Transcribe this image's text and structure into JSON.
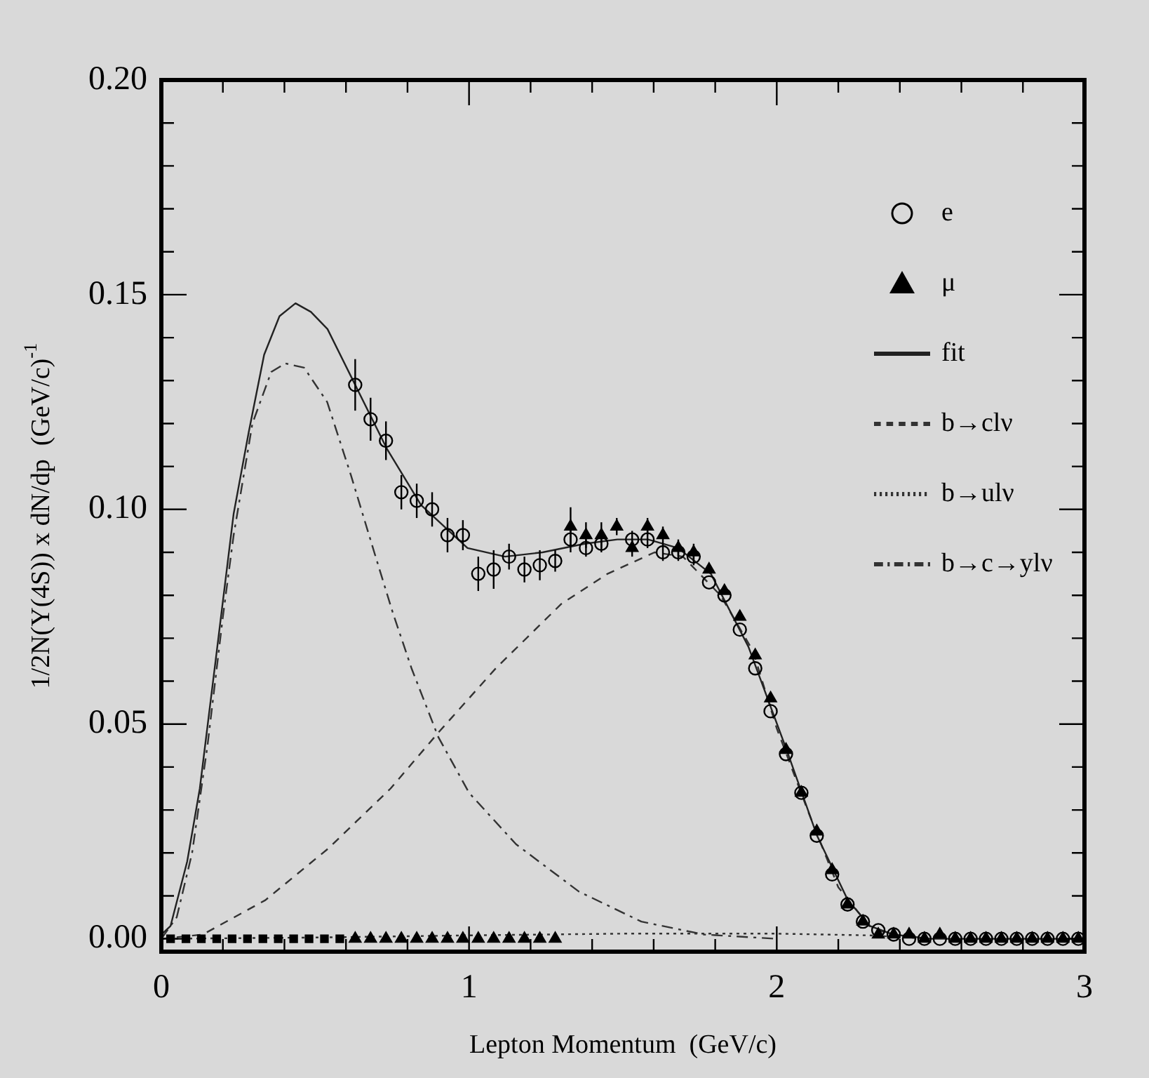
{
  "chart_data": {
    "type": "scatter",
    "xlabel": "Lepton Momentum  (GeV/c)",
    "ylabel": "1/2N(Y(4S)) x dN/dp  (GeV/c)$^{-1}$",
    "xlim": [
      0,
      3
    ],
    "ylim": [
      -0.003,
      0.2
    ],
    "xticks": [
      0,
      {
        "value": 0.2,
        "label": null
      },
      {
        "value": 0.4,
        "label": null
      },
      {
        "value": 0.6,
        "label": null
      },
      {
        "value": 0.8,
        "label": null
      },
      1,
      {
        "value": 1.2,
        "label": null
      },
      {
        "value": 1.4,
        "label": null
      },
      {
        "value": 1.6,
        "label": null
      },
      {
        "value": 1.8,
        "label": null
      },
      2,
      {
        "value": 2.2,
        "label": null
      },
      {
        "value": 2.4,
        "label": null
      },
      {
        "value": 2.6,
        "label": null
      },
      {
        "value": 2.8,
        "label": null
      },
      3
    ],
    "yticks": [
      {
        "value": 0,
        "label": "0.00"
      },
      {
        "value": 0.01,
        "label": null
      },
      {
        "value": 0.02,
        "label": null
      },
      {
        "value": 0.03,
        "label": null
      },
      {
        "value": 0.04,
        "label": null
      },
      {
        "value": 0.05,
        "label": "0.05"
      },
      {
        "value": 0.06,
        "label": null
      },
      {
        "value": 0.07,
        "label": null
      },
      {
        "value": 0.08,
        "label": null
      },
      {
        "value": 0.09,
        "label": null
      },
      {
        "value": 0.1,
        "label": "0.10"
      },
      {
        "value": 0.11,
        "label": null
      },
      {
        "value": 0.12,
        "label": null
      },
      {
        "value": 0.13,
        "label": null
      },
      {
        "value": 0.14,
        "label": null
      },
      {
        "value": 0.15,
        "label": "0.15"
      },
      {
        "value": 0.16,
        "label": null
      },
      {
        "value": 0.17,
        "label": null
      },
      {
        "value": 0.18,
        "label": null
      },
      {
        "value": 0.19,
        "label": null
      },
      {
        "value": 0.2,
        "label": "0.20"
      }
    ],
    "legend": "top right",
    "grid": false,
    "series": [
      {
        "name": "e",
        "marker": "circle",
        "color": "#000000",
        "x": [
          0.63,
          0.68,
          0.73,
          0.78,
          0.83,
          0.88,
          0.93,
          0.98,
          1.03,
          1.08,
          1.13,
          1.18,
          1.23,
          1.28,
          1.33,
          1.38,
          1.43,
          1.53,
          1.58,
          1.63,
          1.68,
          1.73,
          1.78,
          1.83,
          1.88,
          1.93,
          1.98,
          2.03,
          2.08,
          2.13,
          2.18,
          2.23,
          2.28,
          2.33,
          2.38,
          2.43,
          2.48,
          2.53,
          2.58,
          2.63,
          2.68,
          2.73,
          2.78,
          2.83,
          2.88,
          2.93,
          2.98
        ],
        "values": [
          0.129,
          0.121,
          0.116,
          0.104,
          0.102,
          0.1,
          0.094,
          0.094,
          0.085,
          0.086,
          0.089,
          0.086,
          0.087,
          0.088,
          0.093,
          0.091,
          0.092,
          0.093,
          0.093,
          0.09,
          0.09,
          0.089,
          0.083,
          0.08,
          0.072,
          0.063,
          0.053,
          0.043,
          0.034,
          0.024,
          0.015,
          0.008,
          0.004,
          0.002,
          0.001,
          0,
          0,
          0,
          0,
          0,
          0,
          0,
          0,
          0,
          0,
          0,
          0
        ],
        "errors": [
          0.006,
          0.005,
          0.0045,
          0.004,
          0.004,
          0.004,
          0.004,
          0.0035,
          0.004,
          0.0045,
          0.003,
          0.003,
          0.0035,
          0.0025,
          0.003,
          0.002,
          0.002,
          0.002,
          0.002,
          0.002,
          0.002,
          0.002,
          null,
          null,
          null,
          null,
          null,
          null,
          null,
          null,
          null,
          null,
          null,
          null,
          null,
          null,
          null,
          null,
          null,
          null,
          null,
          null,
          null,
          null,
          null,
          null,
          null
        ]
      },
      {
        "name": "μ",
        "marker": "triangle",
        "color": "#000000",
        "x": [
          0.63,
          0.68,
          0.73,
          0.78,
          0.83,
          0.88,
          0.93,
          0.98,
          1.03,
          1.08,
          1.13,
          1.18,
          1.23,
          1.28,
          1.33,
          1.38,
          1.43,
          1.48,
          1.53,
          1.58,
          1.63,
          1.68,
          1.73,
          1.78,
          1.83,
          1.88,
          1.93,
          1.98,
          2.03,
          2.08,
          2.13,
          2.18,
          2.23,
          2.28,
          2.33,
          2.38,
          2.43,
          2.48,
          2.53,
          2.58,
          2.63,
          2.68,
          2.73,
          2.78,
          2.83,
          2.88,
          2.93,
          2.98
        ],
        "values": [
          0,
          0,
          0,
          0,
          0,
          0,
          0,
          0,
          0,
          0,
          0,
          0,
          0,
          0,
          0.096,
          0.094,
          0.094,
          0.096,
          0.091,
          0.096,
          0.094,
          0.091,
          0.09,
          0.086,
          0.081,
          0.075,
          0.066,
          0.056,
          0.044,
          0.034,
          0.025,
          0.016,
          0.008,
          0.004,
          0.001,
          0.001,
          0.001,
          0,
          0.001,
          0,
          0,
          0,
          0,
          0,
          0,
          0,
          0,
          0
        ],
        "errors": [
          null,
          null,
          null,
          null,
          null,
          null,
          null,
          null,
          null,
          null,
          null,
          null,
          null,
          null,
          0.0045,
          0.003,
          0.003,
          0.002,
          0.002,
          0.002,
          0.002,
          0.002,
          0.002,
          null,
          null,
          null,
          null,
          null,
          null,
          null,
          null,
          null,
          null,
          null,
          null,
          null,
          null,
          null,
          null,
          null,
          null,
          null,
          null,
          null,
          null,
          null,
          null,
          null
        ]
      },
      {
        "marker": "square",
        "color": "#000000",
        "x": [
          0.03,
          0.08,
          0.13,
          0.18,
          0.23,
          0.28,
          0.33,
          0.38,
          0.43,
          0.48,
          0.53,
          0.58
        ],
        "values": [
          0,
          0,
          0,
          0,
          0,
          0,
          0,
          0,
          0,
          0,
          0,
          0
        ]
      },
      {
        "name": "fit",
        "type": "line",
        "line_style": "solid",
        "color": "#222222",
        "x": [
          0,
          0.03,
          0.084,
          0.125,
          0.175,
          0.235,
          0.284,
          0.334,
          0.384,
          0.436,
          0.486,
          0.54,
          0.63,
          0.734,
          0.844,
          0.995,
          1.117,
          1.239,
          1.376,
          1.482,
          1.582,
          1.679,
          1.786,
          1.908,
          2.032,
          2.131,
          2.231,
          2.303,
          2.378,
          2.5,
          3
        ],
        "values": [
          0.001,
          0.003,
          0.018,
          0.035,
          0.064,
          0.099,
          0.118,
          0.136,
          0.145,
          0.148,
          0.146,
          0.142,
          0.129,
          0.114,
          0.101,
          0.091,
          0.089,
          0.09,
          0.092,
          0.093,
          0.093,
          0.091,
          0.085,
          0.068,
          0.044,
          0.024,
          0.009,
          0.003,
          0.001,
          0,
          0
        ]
      },
      {
        "name": "b→clν",
        "type": "line",
        "line_style": "dashed",
        "color": "#333333",
        "x": [
          0,
          0.135,
          0.338,
          0.542,
          0.745,
          0.9,
          1.087,
          1.3,
          1.45,
          1.603,
          1.695,
          1.817,
          1.923,
          2.0,
          2.1,
          2.2,
          2.3,
          2.4
        ],
        "values": [
          0,
          0.001,
          0.009,
          0.021,
          0.035,
          0.048,
          0.063,
          0.078,
          0.085,
          0.09,
          0.089,
          0.08,
          0.067,
          0.049,
          0.03,
          0.012,
          0.003,
          0
        ]
      },
      {
        "name": "b→ulν",
        "type": "line",
        "line_style": "dotted",
        "color": "#333333",
        "x": [
          0,
          0.5,
          1.0,
          1.5,
          2.0,
          2.3,
          2.5
        ],
        "values": [
          0,
          0.0003,
          0.0008,
          0.0012,
          0.0012,
          0.0008,
          0
        ]
      },
      {
        "name": "b→c→ylν",
        "type": "line",
        "line_style": "dashdot",
        "color": "#333333",
        "x": [
          0,
          0.05,
          0.1,
          0.15,
          0.2,
          0.235,
          0.296,
          0.357,
          0.403,
          0.464,
          0.539,
          0.616,
          0.692,
          0.752,
          0.813,
          0.9,
          1.0,
          1.153,
          1.357,
          1.56,
          1.763,
          2.0
        ],
        "values": [
          0,
          0.005,
          0.02,
          0.045,
          0.075,
          0.094,
          0.12,
          0.132,
          0.134,
          0.133,
          0.125,
          0.108,
          0.09,
          0.076,
          0.063,
          0.047,
          0.034,
          0.022,
          0.011,
          0.004,
          0.001,
          0
        ]
      }
    ]
  }
}
